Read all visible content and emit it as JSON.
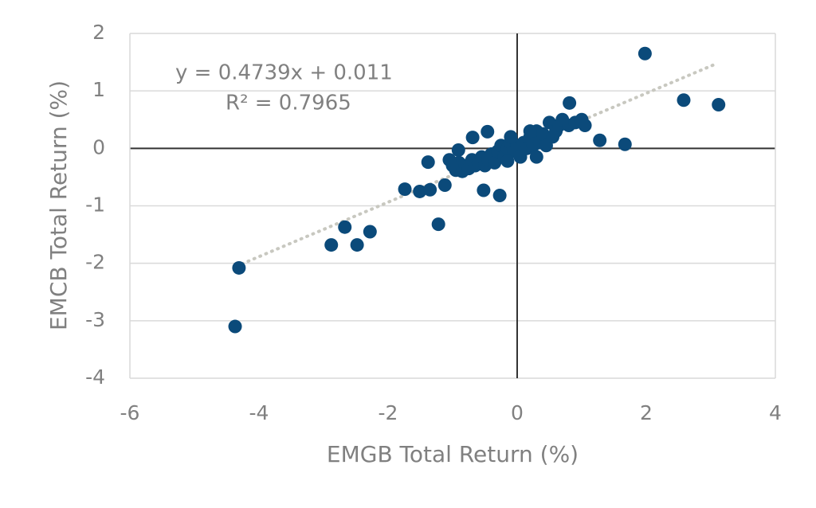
{
  "chart_data": {
    "type": "scatter",
    "x_label": "EMGB Total Return (%)",
    "y_label": "EMCB Total Return (%)",
    "annotations": [
      "y = 0.4739x + 0.011",
      "R² = 0.7965"
    ],
    "xlim": [
      -6,
      4
    ],
    "xticks": [
      -6,
      -4,
      -2,
      0,
      2,
      4
    ],
    "ylim": [
      -4,
      2
    ],
    "yticks": [
      -4,
      -3,
      -2,
      -1,
      0,
      1,
      2
    ],
    "grid": true,
    "series": [
      {
        "color": "#0b4a7a",
        "x": [
          1.98,
          3.12,
          2.58,
          1.28,
          1.67,
          0.81,
          -4.31,
          -4.37,
          -2.67,
          -2.88,
          -2.48,
          -2.28,
          -1.22,
          -1.74,
          -1.51,
          -1.35,
          -1.12,
          -1.38,
          -0.52,
          -0.27,
          -0.91,
          -0.69,
          -0.46,
          -1.0,
          -0.95,
          -0.9,
          -0.85,
          -0.8,
          -0.75,
          -0.7,
          -0.65,
          -0.6,
          -0.55,
          -0.5,
          -0.45,
          -0.4,
          -0.35,
          -0.3,
          -0.25,
          -0.2,
          -0.15,
          -0.1,
          -0.05,
          0,
          0.05,
          0.1,
          0.15,
          0.2,
          0.25,
          0.3,
          0.35,
          0.4,
          0.45,
          0.5,
          0.55,
          0.6,
          0.65,
          0.7,
          0.8,
          0.9,
          1.0,
          1.05,
          0.3,
          -0.15,
          -1.05,
          0.2,
          -0.1
        ],
        "values": [
          1.65,
          0.76,
          0.84,
          0.14,
          0.07,
          0.79,
          -2.08,
          -3.1,
          -1.37,
          -1.68,
          -1.68,
          -1.45,
          -1.32,
          -0.71,
          -0.75,
          -0.72,
          -0.64,
          -0.24,
          -0.73,
          -0.82,
          -0.03,
          0.19,
          0.29,
          -0.3,
          -0.38,
          -0.25,
          -0.4,
          -0.3,
          -0.35,
          -0.2,
          -0.3,
          -0.25,
          -0.15,
          -0.3,
          -0.2,
          -0.1,
          -0.25,
          -0.05,
          0.05,
          -0.15,
          0.0,
          0.1,
          -0.05,
          0.05,
          -0.15,
          0.1,
          0.0,
          0.2,
          0.05,
          0.3,
          0.1,
          0.25,
          0.05,
          0.45,
          0.2,
          0.3,
          0.4,
          0.5,
          0.4,
          0.45,
          0.5,
          0.4,
          -0.15,
          -0.22,
          -0.2,
          0.3,
          0.2
        ]
      }
    ],
    "trendline": {
      "slope": 0.4739,
      "intercept": 0.011,
      "xlim": [
        -4.35,
        3.1
      ],
      "color": "#c8c8c0"
    }
  }
}
